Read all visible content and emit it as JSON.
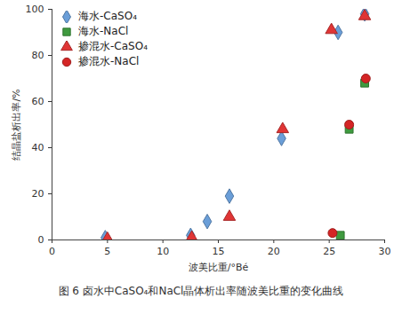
{
  "chart_data": {
    "type": "scatter",
    "title": "图 6 卤水中CaSO₄和NaCl晶体析出率随波美比重的变化曲线",
    "x_label": "波美比重/°Bé",
    "y_label": "结晶盐析出率/%",
    "xlim": [
      0,
      30
    ],
    "xticks": [
      0,
      5,
      10,
      15,
      20,
      25,
      30
    ],
    "ylim": [
      0,
      100
    ],
    "yticks": [
      0,
      20,
      40,
      60,
      80,
      100
    ],
    "legend": "upper left",
    "grid": false,
    "series": [
      {
        "name": "海水-CaSO₄",
        "color": "#6a9ed8",
        "marker": "diamond",
        "x": [
          4.8,
          12.5,
          14,
          16,
          20.7,
          25.8,
          28.2
        ],
        "values": [
          1,
          2,
          8,
          19,
          44,
          90,
          98
        ]
      },
      {
        "name": "海水-NaCl",
        "color": "#3f9a3f",
        "marker": "square",
        "x": [
          26,
          26.8,
          28.2
        ],
        "values": [
          2,
          48,
          68
        ]
      },
      {
        "name": "掺混水-CaSO₄",
        "color": "#e03535",
        "marker": "triangle",
        "x": [
          5,
          12.6,
          16,
          20.8,
          25.2,
          28.2
        ],
        "values": [
          0.5,
          1,
          10,
          48,
          91,
          97
        ]
      },
      {
        "name": "掺混水-NaCl",
        "color": "#d42525",
        "marker": "circle",
        "x": [
          25.3,
          26.8,
          28.3
        ],
        "values": [
          3,
          50,
          70
        ]
      }
    ]
  }
}
